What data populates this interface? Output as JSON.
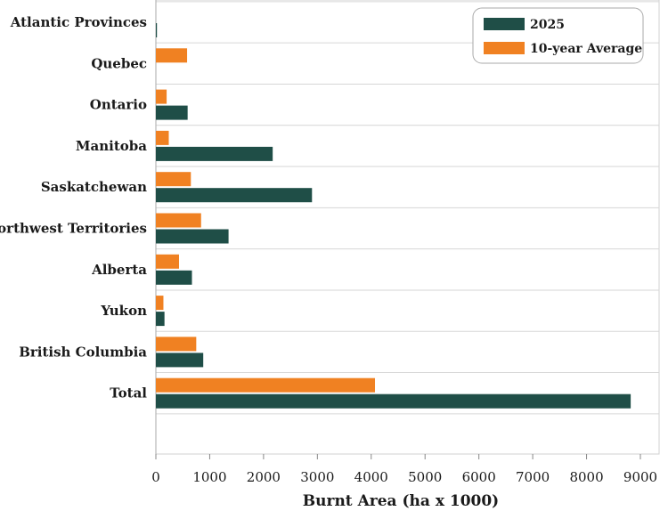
{
  "chart_data": {
    "type": "bar",
    "orientation": "horizontal",
    "title": "",
    "xlabel": "Burnt Area (ha x 1000)",
    "ylabel": "",
    "xlim": [
      0,
      9000
    ],
    "xticks": [
      0,
      1000,
      2000,
      3000,
      4000,
      5000,
      6000,
      7000,
      8000,
      9000
    ],
    "categories": [
      "Atlantic Provinces",
      "Quebec",
      "Ontario",
      "Manitoba",
      "Saskatchewan",
      "Northwest Territories",
      "Alberta",
      "Yukon",
      "British Columbia",
      "Total"
    ],
    "series": [
      {
        "name": "2025",
        "color": "#1f4e47",
        "values": [
          20,
          0,
          590,
          2170,
          2900,
          1350,
          670,
          160,
          880,
          8820
        ]
      },
      {
        "name": "10-year Average",
        "color": "#f08122",
        "values": [
          0,
          580,
          200,
          240,
          650,
          840,
          430,
          140,
          750,
          4070
        ]
      }
    ],
    "grid": {
      "horizontal": true,
      "vertical": false
    },
    "legend": "top-right"
  }
}
